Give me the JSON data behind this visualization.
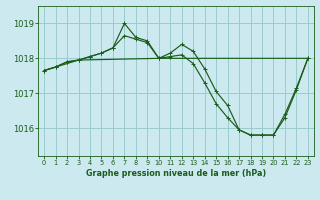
{
  "title": "Graphe pression niveau de la mer (hPa)",
  "bg_color": "#cce9f0",
  "grid_color": "#99cccc",
  "line_color": "#1a5c1a",
  "xlim": [
    -0.5,
    23.5
  ],
  "ylim": [
    1015.2,
    1019.5
  ],
  "yticks": [
    1016,
    1017,
    1018,
    1019
  ],
  "xticks": [
    0,
    1,
    2,
    3,
    4,
    5,
    6,
    7,
    8,
    9,
    10,
    11,
    12,
    13,
    14,
    15,
    16,
    17,
    18,
    19,
    20,
    21,
    22,
    23
  ],
  "series": [
    {
      "x": [
        0,
        1,
        2,
        3,
        4,
        5,
        6,
        7,
        8,
        9,
        10,
        11,
        12,
        13,
        14,
        15,
        16,
        17,
        18,
        19,
        20,
        21,
        22,
        23
      ],
      "y": [
        1017.65,
        1017.75,
        1017.9,
        1017.95,
        1018.05,
        1018.15,
        1018.3,
        1019.0,
        1018.6,
        1018.5,
        1018.0,
        1018.15,
        1018.4,
        1018.2,
        1017.7,
        1017.05,
        1016.65,
        1015.95,
        1015.8,
        1015.8,
        1015.8,
        1016.3,
        1017.1,
        1018.0
      ],
      "marker": "+"
    },
    {
      "x": [
        0,
        1,
        2,
        3,
        4,
        5,
        6,
        7,
        8,
        9,
        10,
        11,
        12,
        13,
        14,
        15,
        16,
        17,
        18,
        19,
        20,
        21,
        22,
        23
      ],
      "y": [
        1017.65,
        1017.75,
        1017.9,
        1017.95,
        1018.05,
        1018.15,
        1018.3,
        1018.65,
        1018.55,
        1018.45,
        1018.0,
        1018.05,
        1018.1,
        1017.85,
        1017.3,
        1016.7,
        1016.3,
        1015.95,
        1015.8,
        1015.8,
        1015.8,
        1016.4,
        1017.15,
        1018.0
      ],
      "marker": "+"
    },
    {
      "x": [
        0,
        3,
        10,
        20,
        23
      ],
      "y": [
        1017.65,
        1017.95,
        1018.0,
        1018.0,
        1018.0
      ],
      "marker": null
    }
  ]
}
